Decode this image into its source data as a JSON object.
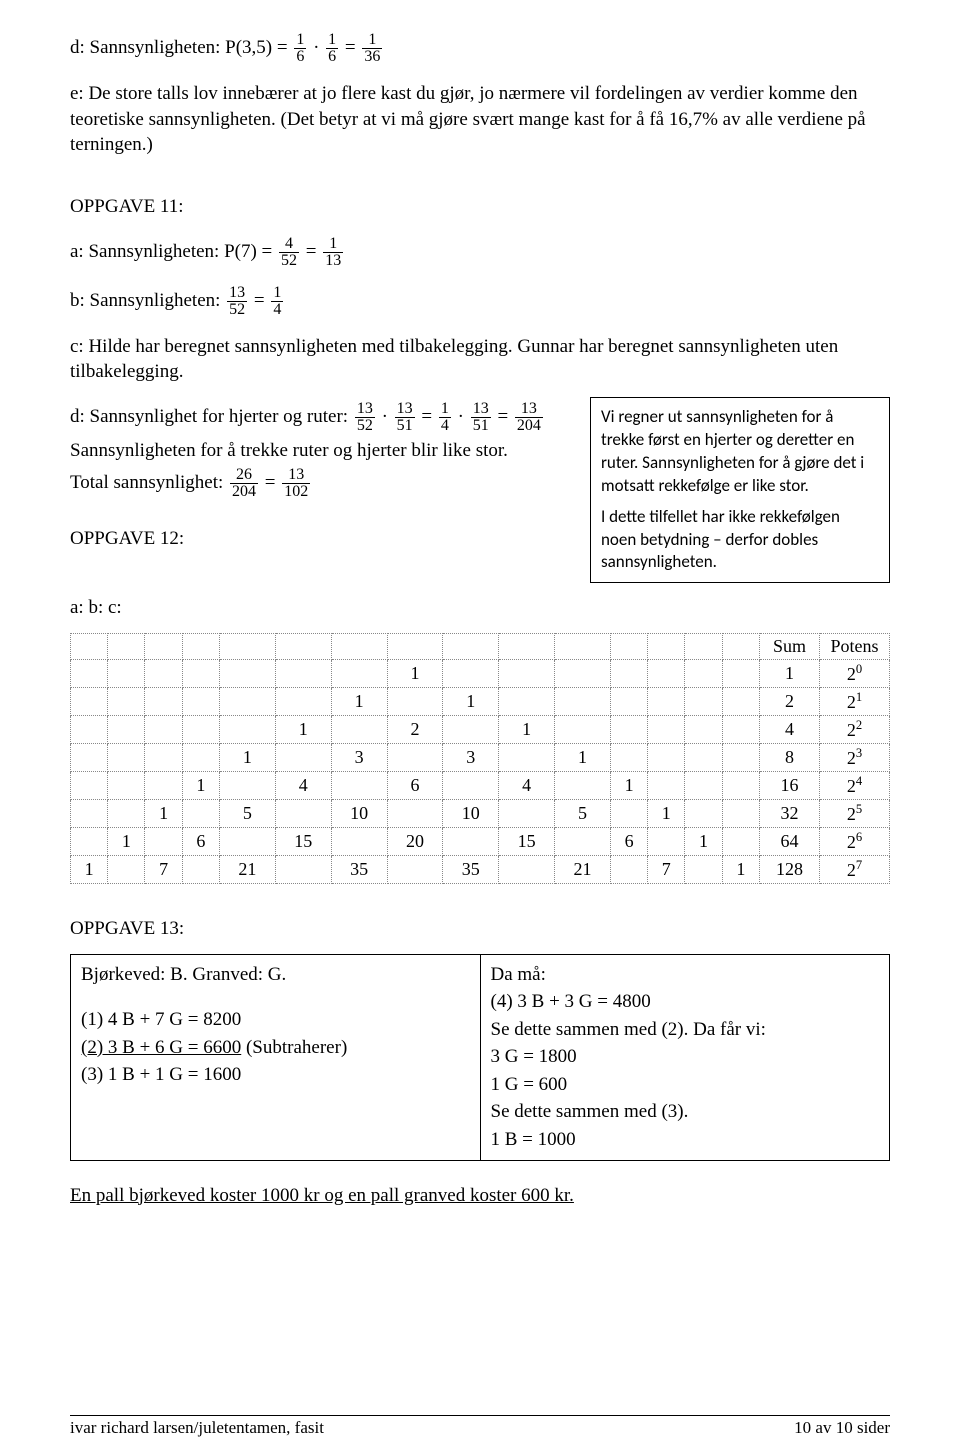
{
  "p_d": {
    "label": "d: Sannsynligheten: P(3,5) = ",
    "f1n": "1",
    "f1d": "6",
    "dot": " · ",
    "f2n": "1",
    "f2d": "6",
    "eq": " = ",
    "f3n": "1",
    "f3d": "36"
  },
  "p_e": "e: De store talls lov innebærer at jo flere kast du gjør, jo nærmere vil fordelingen av verdier komme den teoretiske sannsynligheten. (Det betyr at vi må gjøre svært mange kast for å få 16,7% av alle verdiene på terningen.)",
  "oppg11": {
    "title": "OPPGAVE 11:",
    "a": {
      "label": "a: Sannsynligheten: P(7) = ",
      "f1n": "4",
      "f1d": "52",
      "eq": " = ",
      "f2n": "1",
      "f2d": "13"
    },
    "b": {
      "label": "b: Sannsynligheten: ",
      "f1n": "13",
      "f1d": "52",
      "eq": " = ",
      "f2n": "1",
      "f2d": "4"
    },
    "c": "c: Hilde har beregnet sannsynligheten med tilbakelegging. Gunnar har beregnet sannsynligheten uten tilbakelegging.",
    "d": {
      "label": "d: Sannsynlighet for hjerter og ruter: ",
      "f1n": "13",
      "f1d": "52",
      "dot1": " · ",
      "f2n": "13",
      "f2d": "51",
      "eq1": " = ",
      "f3n": "1",
      "f3d": "4",
      "dot2": " · ",
      "f4n": "13",
      "f4d": "51",
      "eq2": " = ",
      "f5n": "13",
      "f5d": "204"
    },
    "d2": "Sannsynligheten for å trekke ruter og hjerter blir like stor.",
    "d3": {
      "label": "Total sannsynlighet: ",
      "f1n": "26",
      "f1d": "204",
      "eq": " = ",
      "f2n": "13",
      "f2d": "102"
    }
  },
  "info": {
    "p1": "Vi regner ut sannsynligheten for å trekke først en hjerter og deretter en ruter. Sannsynligheten for å gjøre det i motsatt rekkefølge er like stor.",
    "p2": "I dette tilfellet har ikke rekkefølgen noen betydning – derfor dobles sannsynligheten."
  },
  "oppg12": {
    "title": "OPPGAVE 12:",
    "abc": "a: b: c:",
    "headers": {
      "sum": "Sum",
      "potens": "Potens"
    },
    "rows": [
      {
        "cells": [
          "",
          "",
          "",
          "",
          "",
          "",
          "",
          "1",
          "",
          "",
          "",
          "",
          "",
          "",
          ""
        ],
        "sum": "1",
        "pot_base": "2",
        "pot_exp": "0"
      },
      {
        "cells": [
          "",
          "",
          "",
          "",
          "",
          "",
          "1",
          "",
          "1",
          "",
          "",
          "",
          "",
          "",
          ""
        ],
        "sum": "2",
        "pot_base": "2",
        "pot_exp": "1"
      },
      {
        "cells": [
          "",
          "",
          "",
          "",
          "",
          "1",
          "",
          "2",
          "",
          "1",
          "",
          "",
          "",
          "",
          ""
        ],
        "sum": "4",
        "pot_base": "2",
        "pot_exp": "2"
      },
      {
        "cells": [
          "",
          "",
          "",
          "",
          "1",
          "",
          "3",
          "",
          "3",
          "",
          "1",
          "",
          "",
          "",
          ""
        ],
        "sum": "8",
        "pot_base": "2",
        "pot_exp": "3"
      },
      {
        "cells": [
          "",
          "",
          "",
          "1",
          "",
          "4",
          "",
          "6",
          "",
          "4",
          "",
          "1",
          "",
          "",
          ""
        ],
        "sum": "16",
        "pot_base": "2",
        "pot_exp": "4"
      },
      {
        "cells": [
          "",
          "",
          "1",
          "",
          "5",
          "",
          "10",
          "",
          "10",
          "",
          "5",
          "",
          "1",
          "",
          ""
        ],
        "sum": "32",
        "pot_base": "2",
        "pot_exp": "5"
      },
      {
        "cells": [
          "",
          "1",
          "",
          "6",
          "",
          "15",
          "",
          "20",
          "",
          "15",
          "",
          "6",
          "",
          "1",
          ""
        ],
        "sum": "64",
        "pot_base": "2",
        "pot_exp": "6"
      },
      {
        "cells": [
          "1",
          "",
          "7",
          "",
          "21",
          "",
          "35",
          "",
          "35",
          "",
          "21",
          "",
          "7",
          "",
          "1"
        ],
        "sum": "128",
        "pot_base": "2",
        "pot_exp": "7"
      }
    ]
  },
  "oppg13": {
    "title": "OPPGAVE 13:",
    "left": {
      "l1": "Bjørkeved: B. Granved: G.",
      "l2": "(1) 4 B + 7 G = 8200",
      "l3_a": "(2) 3 B + 6 G = 6600",
      "l3_b": "  (Subtraherer)",
      "l4": "(3) 1 B + 1 G = 1600"
    },
    "right": {
      "l1": "Da må:",
      "l2": "(4) 3 B + 3 G = 4800",
      "l3": "Se dette sammen med (2). Da får vi:",
      "l4": "3 G = 1800",
      "l5": "1 G = 600",
      "l6": "Se dette sammen med (3).",
      "l7": "1 B = 1000"
    },
    "conclusion": "En pall bjørkeved koster 1000 kr og en pall granved koster 600 kr."
  },
  "footer": {
    "left": "ivar richard larsen/juletentamen, fasit",
    "right": "10 av 10 sider"
  }
}
